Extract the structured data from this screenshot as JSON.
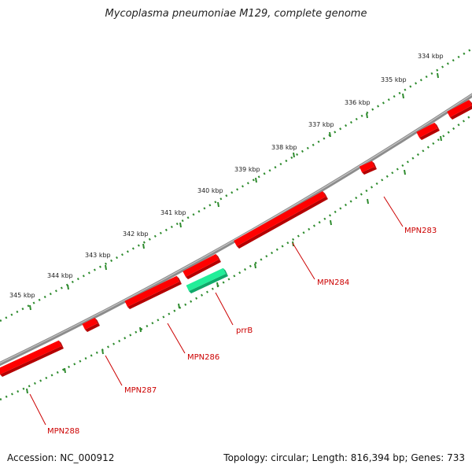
{
  "title": "Mycoplasma pneumoniae M129, complete genome",
  "accession": "Accession: NC_000912",
  "stats": "Topology: circular; Length: 816,394 bp; Genes: 733",
  "kbp_labels": [
    "334 kbp",
    "335 kbp",
    "336 kbp",
    "337 kbp",
    "338 kbp",
    "339 kbp",
    "340 kbp",
    "341 kbp",
    "342 kbp",
    "343 kbp",
    "344 kbp",
    "345 kbp"
  ],
  "genes": [
    {
      "label": "MPN283",
      "color": "#ff0000"
    },
    {
      "label": "MPN284",
      "color": "#ff0000"
    },
    {
      "label": "prrB",
      "color": "#22ee99"
    },
    {
      "label": "MPN286",
      "color": "#ff0000"
    },
    {
      "label": "MPN287",
      "color": "#ff0000"
    },
    {
      "label": "MPN288",
      "color": "#ff0000"
    }
  ],
  "colors": {
    "backbone": "#8c8c8c",
    "ticks": "#2e8b2e",
    "gene_forward": "#ff0000",
    "rna": "#22ee99",
    "label": "#cc0000"
  }
}
